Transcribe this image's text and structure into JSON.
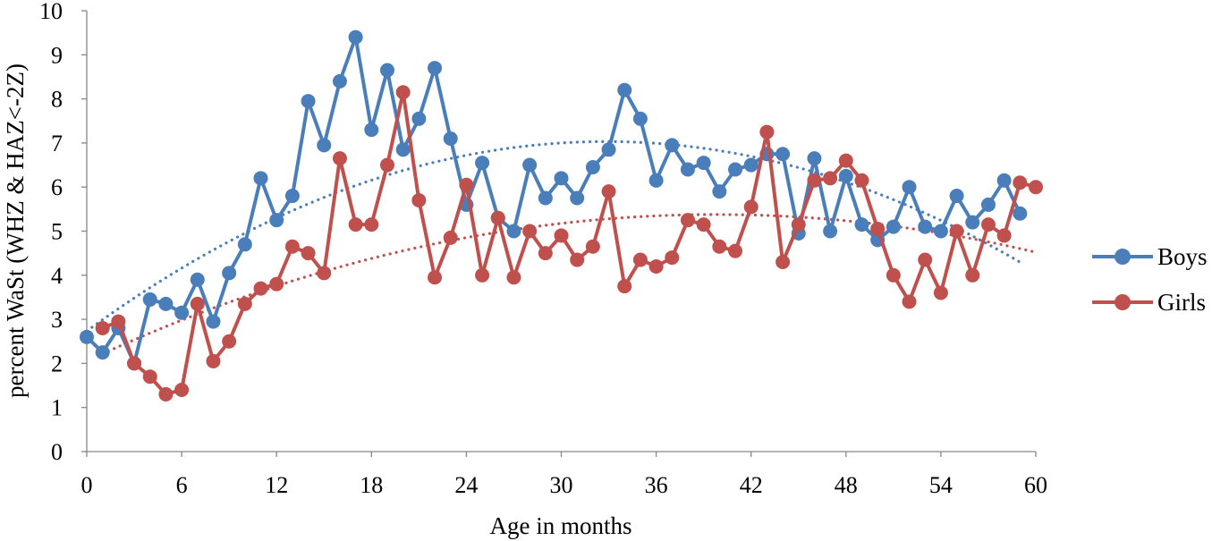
{
  "chart_data": {
    "type": "line",
    "xlabel": "Age in months",
    "ylabel": "percent WaSt (WHZ & HAZ<-2Z)",
    "xlim": [
      0,
      60
    ],
    "ylim": [
      0,
      10
    ],
    "xticks": [
      0,
      6,
      12,
      18,
      24,
      30,
      36,
      42,
      48,
      54,
      60
    ],
    "yticks": [
      0,
      1,
      2,
      3,
      4,
      5,
      6,
      7,
      8,
      9,
      10
    ],
    "grid": false,
    "legend_position": "right",
    "trendlines": "polynomial (dotted), one per series",
    "series": [
      {
        "name": "Boys",
        "color": "#4a7ebb",
        "x": [
          0,
          1,
          2,
          3,
          4,
          5,
          6,
          7,
          8,
          9,
          10,
          11,
          12,
          13,
          14,
          15,
          16,
          17,
          18,
          19,
          20,
          21,
          22,
          23,
          24,
          25,
          26,
          27,
          28,
          29,
          30,
          31,
          32,
          33,
          34,
          35,
          36,
          37,
          38,
          39,
          40,
          41,
          42,
          43,
          44,
          45,
          46,
          47,
          48,
          49,
          50,
          51,
          52,
          53,
          54,
          55,
          56,
          57,
          58,
          59
        ],
        "values": [
          2.6,
          2.25,
          2.8,
          2.0,
          3.45,
          3.35,
          3.15,
          3.9,
          2.95,
          4.05,
          4.7,
          6.2,
          5.25,
          5.8,
          7.95,
          6.95,
          8.4,
          9.4,
          7.3,
          8.65,
          6.85,
          7.55,
          8.7,
          7.1,
          5.6,
          6.55,
          5.3,
          5.0,
          6.5,
          5.75,
          6.2,
          5.75,
          6.45,
          6.85,
          8.2,
          7.55,
          6.15,
          6.95,
          6.4,
          6.55,
          5.9,
          6.4,
          6.5,
          6.75,
          6.75,
          4.95,
          6.65,
          5.0,
          6.25,
          5.15,
          4.8,
          5.1,
          6.0,
          5.1,
          5.0,
          5.8,
          5.2,
          5.6,
          6.15,
          5.4
        ]
      },
      {
        "name": "Girls",
        "color": "#c0504d",
        "x": [
          1,
          2,
          3,
          4,
          5,
          6,
          7,
          8,
          9,
          10,
          11,
          12,
          13,
          14,
          15,
          16,
          17,
          18,
          19,
          20,
          21,
          22,
          23,
          24,
          25,
          26,
          27,
          28,
          29,
          30,
          31,
          32,
          33,
          34,
          35,
          36,
          37,
          38,
          39,
          40,
          41,
          42,
          43,
          44,
          45,
          46,
          47,
          48,
          49,
          50,
          51,
          52,
          53,
          54,
          55,
          56,
          57,
          58,
          59,
          60
        ],
        "values": [
          2.8,
          2.95,
          2.0,
          1.7,
          1.3,
          1.4,
          3.35,
          2.05,
          2.5,
          3.35,
          3.7,
          3.8,
          4.65,
          4.5,
          4.05,
          6.65,
          5.15,
          5.15,
          6.5,
          8.15,
          5.7,
          3.95,
          4.85,
          6.05,
          4.0,
          5.3,
          3.95,
          5.0,
          4.5,
          4.9,
          4.35,
          4.65,
          5.9,
          3.75,
          4.35,
          4.2,
          4.4,
          5.25,
          5.15,
          4.65,
          4.55,
          5.55,
          7.25,
          4.3,
          5.15,
          6.15,
          6.2,
          6.6,
          6.15,
          5.05,
          4.0,
          3.4,
          4.35,
          3.6,
          5.0,
          4.0,
          5.15,
          4.9,
          6.1,
          6.0
        ]
      }
    ]
  }
}
